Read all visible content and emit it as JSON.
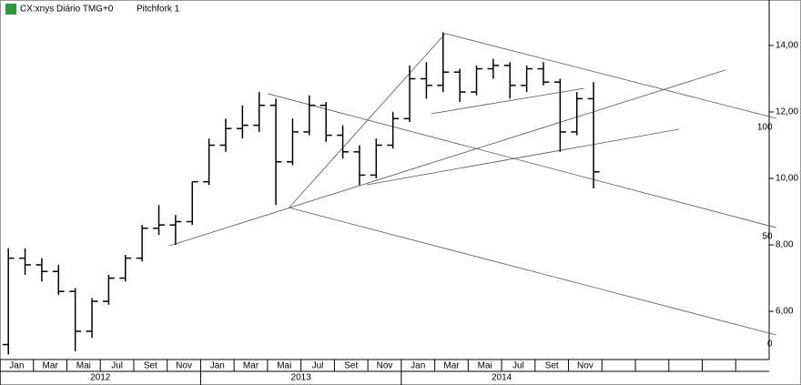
{
  "chart_data": {
    "type": "ohlc",
    "symbol": "CX:xnys Diário TMG+0",
    "study": "Pitchfork 1",
    "x": [
      "2012-01",
      "2012-02",
      "2012-03",
      "2012-04",
      "2012-05",
      "2012-06",
      "2012-07",
      "2012-08",
      "2012-09",
      "2012-10",
      "2012-11",
      "2012-12",
      "2013-01",
      "2013-02",
      "2013-03",
      "2013-04",
      "2013-05",
      "2013-06",
      "2013-07",
      "2013-08",
      "2013-09",
      "2013-10",
      "2013-11",
      "2013-12",
      "2014-01",
      "2014-02",
      "2014-03",
      "2014-04",
      "2014-05",
      "2014-06",
      "2014-07",
      "2014-08",
      "2014-09",
      "2014-10",
      "2014-11",
      "2014-12"
    ],
    "open": [
      5.0,
      7.6,
      7.4,
      7.2,
      6.6,
      5.4,
      6.3,
      7.0,
      7.6,
      8.5,
      8.6,
      8.7,
      9.9,
      11.0,
      11.5,
      11.6,
      12.2,
      10.5,
      11.4,
      12.2,
      11.3,
      10.8,
      10.1,
      11.0,
      11.8,
      13.0,
      12.8,
      13.2,
      12.6,
      13.3,
      13.4,
      12.8,
      13.3,
      12.9,
      11.4,
      12.4
    ],
    "high": [
      7.9,
      7.9,
      7.6,
      7.4,
      6.7,
      6.4,
      7.1,
      7.7,
      8.6,
      9.2,
      8.9,
      9.9,
      11.2,
      11.8,
      12.2,
      12.6,
      12.4,
      11.8,
      12.5,
      12.3,
      11.6,
      11.0,
      11.2,
      12.0,
      13.4,
      13.5,
      14.4,
      13.3,
      13.4,
      13.6,
      13.5,
      13.4,
      13.5,
      13.0,
      12.6,
      12.9
    ],
    "low": [
      4.7,
      7.1,
      6.9,
      6.5,
      4.8,
      5.2,
      6.2,
      6.9,
      7.5,
      8.3,
      8.0,
      8.6,
      9.8,
      10.8,
      11.2,
      11.4,
      9.2,
      10.4,
      11.3,
      11.1,
      10.6,
      9.8,
      10.0,
      10.9,
      11.7,
      12.4,
      12.6,
      12.3,
      12.5,
      13.0,
      12.4,
      12.6,
      12.8,
      10.8,
      11.3,
      9.7
    ],
    "close": [
      7.6,
      7.4,
      7.2,
      6.6,
      5.4,
      6.3,
      7.0,
      7.6,
      8.5,
      8.6,
      8.7,
      9.9,
      11.0,
      11.5,
      11.6,
      12.2,
      10.5,
      11.4,
      12.2,
      11.3,
      10.8,
      10.1,
      11.0,
      11.8,
      13.0,
      12.8,
      13.2,
      12.6,
      13.3,
      13.4,
      12.8,
      13.3,
      12.9,
      11.4,
      12.4,
      10.2
    ],
    "color": "#000000",
    "month_labels": [
      "Jan",
      null,
      "Mar",
      null,
      "Mai",
      null,
      "Jul",
      null,
      "Set",
      null,
      "Nov",
      null,
      "Jan",
      null,
      "Mar",
      null,
      "Mai",
      null,
      "Jul",
      null,
      "Set",
      null,
      "Nov",
      null,
      "Jan",
      null,
      "Mar",
      null,
      "Mai",
      null,
      "Jul",
      null,
      "Set",
      null,
      "Nov",
      null,
      null,
      null,
      null,
      null,
      null,
      null,
      null,
      null,
      null,
      null
    ],
    "years": [
      "2012",
      "2013",
      "2014"
    ],
    "ylim": [
      4.55,
      15.37
    ],
    "yticks": [
      {
        "value": 6,
        "label": "6,00"
      },
      {
        "value": 8,
        "label": "8,00"
      },
      {
        "value": 10,
        "label": "10,00"
      },
      {
        "value": 12,
        "label": "12,00"
      },
      {
        "value": 14,
        "label": "14,00"
      }
    ],
    "pitchfork_lines": [
      {
        "x": [
          16.02,
          46.41
        ],
        "y": [
          12.55,
          8.52
        ],
        "label": "50"
      },
      {
        "x": [
          26.63,
          46.41
        ],
        "y": [
          14.36,
          11.81
        ],
        "label": "100"
      },
      {
        "x": [
          17.29,
          46.41
        ],
        "y": [
          9.12,
          5.29
        ],
        "label": "0"
      },
      {
        "x": [
          10.11,
          43.37
        ],
        "y": [
          7.97,
          13.26
        ]
      },
      {
        "x": [
          17.29,
          26.63
        ],
        "y": [
          9.12,
          14.36
        ]
      },
      {
        "x": [
          21.93,
          40.61
        ],
        "y": [
          9.81,
          11.48
        ]
      },
      {
        "x": [
          25.8,
          34.92
        ],
        "y": [
          11.95,
          12.71
        ]
      }
    ],
    "line_color": "#555555"
  }
}
